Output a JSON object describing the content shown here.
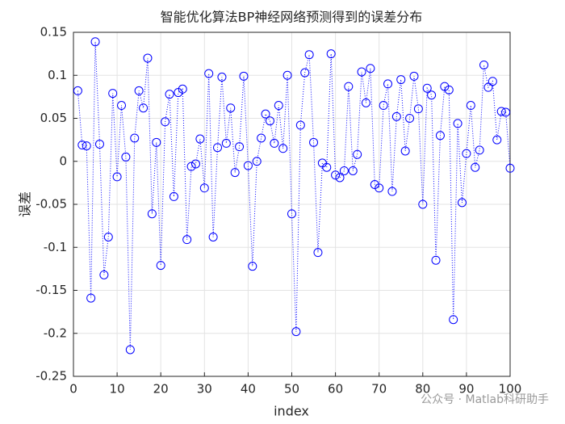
{
  "chart_data": {
    "type": "line",
    "title": "智能优化算法BP神经网络预测得到的误差分布",
    "x_label": "index",
    "y_label": "误差",
    "annotation": "公众号 · Matlab科研助手",
    "x": [
      1,
      2,
      3,
      4,
      5,
      6,
      7,
      8,
      9,
      10,
      11,
      12,
      13,
      14,
      15,
      16,
      17,
      18,
      19,
      20,
      21,
      22,
      23,
      24,
      25,
      26,
      27,
      28,
      29,
      30,
      31,
      32,
      33,
      34,
      35,
      36,
      37,
      38,
      39,
      40,
      41,
      42,
      43,
      44,
      45,
      46,
      47,
      48,
      49,
      50,
      51,
      52,
      53,
      54,
      55,
      56,
      57,
      58,
      59,
      60,
      61,
      62,
      63,
      64,
      65,
      66,
      67,
      68,
      69,
      70,
      71,
      72,
      73,
      74,
      75,
      76,
      77,
      78,
      79,
      80,
      81,
      82,
      83,
      84,
      85,
      86,
      87,
      88,
      89,
      90,
      91,
      92,
      93,
      94,
      95,
      96,
      97,
      98,
      99,
      100
    ],
    "series": [
      {
        "color": "#0000ff",
        "marker": "circle",
        "line_style": "dotted",
        "values": [
          0.082,
          0.019,
          0.018,
          -0.159,
          0.139,
          0.02,
          -0.132,
          -0.088,
          0.079,
          -0.018,
          0.065,
          0.005,
          -0.219,
          0.027,
          0.082,
          0.062,
          0.12,
          -0.061,
          0.022,
          -0.121,
          0.046,
          0.078,
          -0.041,
          0.08,
          0.084,
          -0.091,
          -0.006,
          -0.003,
          0.026,
          -0.031,
          0.102,
          -0.088,
          0.016,
          0.098,
          0.021,
          0.062,
          -0.013,
          0.017,
          0.099,
          -0.005,
          -0.122,
          0,
          0.027,
          0.055,
          0.047,
          0.021,
          0.065,
          0.015,
          0.1,
          -0.061,
          -0.198,
          0.042,
          0.103,
          0.124,
          0.022,
          -0.106,
          -0.002,
          -0.007,
          0.125,
          -0.016,
          -0.019,
          -0.011,
          0.087,
          -0.011,
          0.008,
          0.104,
          0.068,
          0.108,
          -0.027,
          -0.031,
          0.065,
          0.09,
          -0.035,
          0.052,
          0.095,
          0.012,
          0.05,
          0.099,
          0.061,
          -0.05,
          0.085,
          0.077,
          -0.115,
          0.03,
          0.087,
          0.083,
          -0.184,
          0.044,
          -0.048,
          0.009,
          0.065,
          -0.007,
          0.013,
          0.112,
          0.086,
          0.093,
          0.025,
          0.058,
          0.057,
          -0.008
        ]
      }
    ],
    "xlim": [
      0,
      100
    ],
    "xticks": [
      0,
      10,
      20,
      30,
      40,
      50,
      60,
      70,
      80,
      90,
      100
    ],
    "ylim": [
      -0.25,
      0.15
    ],
    "yticks": [
      -0.25,
      -0.2,
      -0.15,
      -0.1,
      -0.05,
      0,
      0.05,
      0.1,
      0.15
    ],
    "grid": true
  }
}
